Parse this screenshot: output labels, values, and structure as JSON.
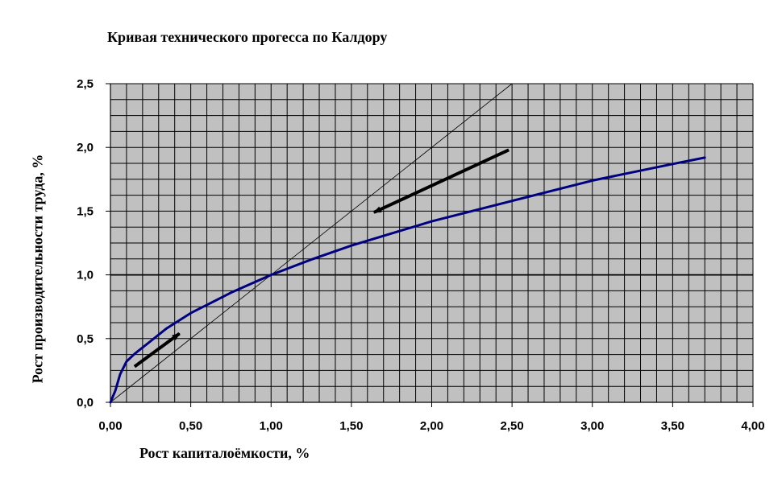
{
  "chart_data": {
    "type": "line",
    "title": "Кривая технического прогесса по Калдору",
    "xlabel": "Рост капиталоёмкости, %",
    "ylabel": "Рост производительности труда, %",
    "xlim": [
      0,
      4
    ],
    "ylim": [
      0,
      2.5
    ],
    "x_ticks": [
      "0,00",
      "0,50",
      "1,00",
      "1,50",
      "2,00",
      "2,50",
      "3,00",
      "3,50",
      "4,00"
    ],
    "y_ticks": [
      "0,0",
      "0,5",
      "1,0",
      "1,5",
      "2,0",
      "2,5"
    ],
    "grid": true,
    "plot_background": "#c0c0c0",
    "grid_color": "#000000",
    "series": [
      {
        "color": "#000080",
        "x": [
          0.0,
          0.03,
          0.06,
          0.1,
          0.15,
          0.25,
          0.35,
          0.5,
          0.75,
          1.0,
          1.25,
          1.5,
          2.0,
          2.5,
          3.0,
          3.5,
          3.7
        ],
        "y": [
          0.0,
          0.09,
          0.22,
          0.32,
          0.38,
          0.48,
          0.58,
          0.7,
          0.86,
          1.0,
          1.12,
          1.23,
          1.42,
          1.58,
          1.74,
          1.87,
          1.92
        ]
      }
    ],
    "reference_lines": [
      {
        "kind": "diagonal",
        "x": [
          0,
          2.5
        ],
        "y": [
          0,
          2.5
        ],
        "color": "#000000"
      },
      {
        "kind": "horizontal",
        "y": 1.0,
        "color": "#000000"
      }
    ],
    "arrows": [
      {
        "from": [
          0.15,
          0.28
        ],
        "to": [
          0.43,
          0.54
        ]
      },
      {
        "from": [
          2.48,
          1.98
        ],
        "to": [
          1.64,
          1.49
        ]
      }
    ]
  }
}
